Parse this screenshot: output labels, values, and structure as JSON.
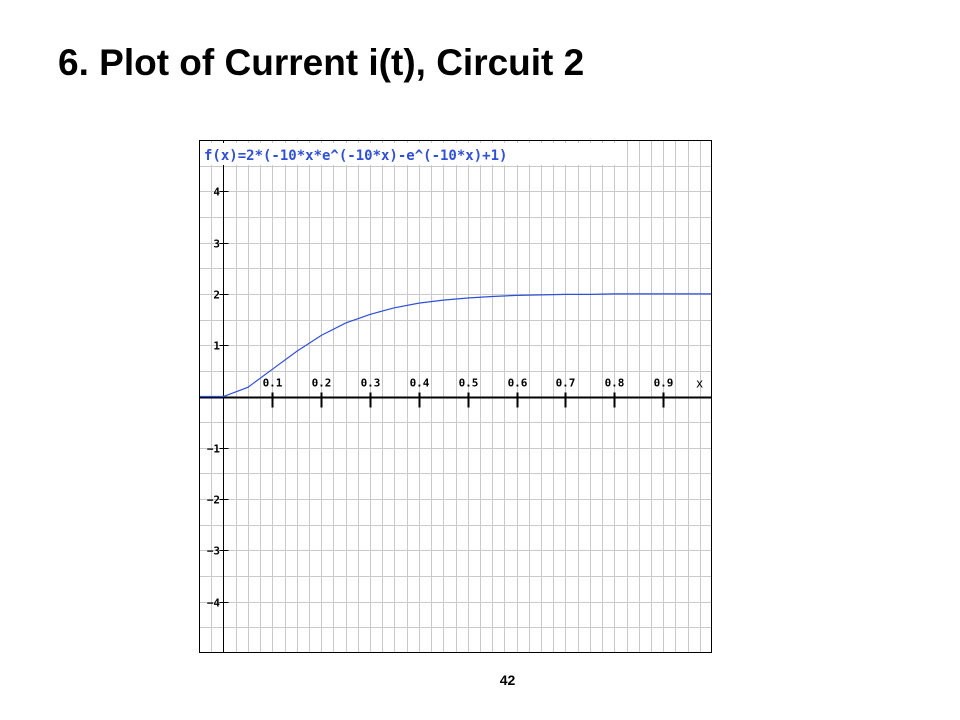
{
  "slide": {
    "title": "6. Plot of Current i(t), Circuit 2",
    "page_number": "42"
  },
  "chart_data": {
    "type": "line",
    "title": "f(x)=2*(-10*x*e^(-10*x)-e^(-10*x)+1)",
    "xlabel": "x",
    "ylabel": "",
    "xlim": [
      -0.05,
      1.0
    ],
    "ylim": [
      -5,
      5
    ],
    "grid": true,
    "x_ticks": [
      0.1,
      0.2,
      0.3,
      0.4,
      0.5,
      0.6,
      0.7,
      0.8,
      0.9
    ],
    "x_tick_labels": [
      "0.1",
      "0.2",
      "0.3",
      "0.4",
      "0.5",
      "0.6",
      "0.7",
      "0.8",
      "0.9"
    ],
    "y_ticks": [
      4,
      3,
      2,
      1,
      -1,
      -2,
      -3,
      -4
    ],
    "y_tick_labels": [
      "4",
      "3",
      "2",
      "1",
      "−1",
      "−2",
      "−3",
      "−4"
    ],
    "series": [
      {
        "color": "#2f4fd8",
        "x": [
          -0.05,
          0,
          0.05,
          0.1,
          0.15,
          0.2,
          0.25,
          0.3,
          0.35,
          0.4,
          0.45,
          0.5,
          0.55,
          0.6,
          0.65,
          0.7,
          0.75,
          0.8,
          0.85,
          0.9,
          0.95,
          1.0
        ],
        "y": [
          0,
          0,
          0.18,
          0.53,
          0.88,
          1.19,
          1.43,
          1.6,
          1.73,
          1.82,
          1.88,
          1.92,
          1.95,
          1.97,
          1.98,
          1.99,
          1.99,
          2.0,
          2.0,
          2.0,
          2.0,
          2.0
        ]
      }
    ],
    "colors": {
      "grid": "#c9c9c9",
      "axis": "#000000",
      "tick_label": "#000000",
      "title": "#2f4fd8",
      "frame": "#000000"
    }
  }
}
